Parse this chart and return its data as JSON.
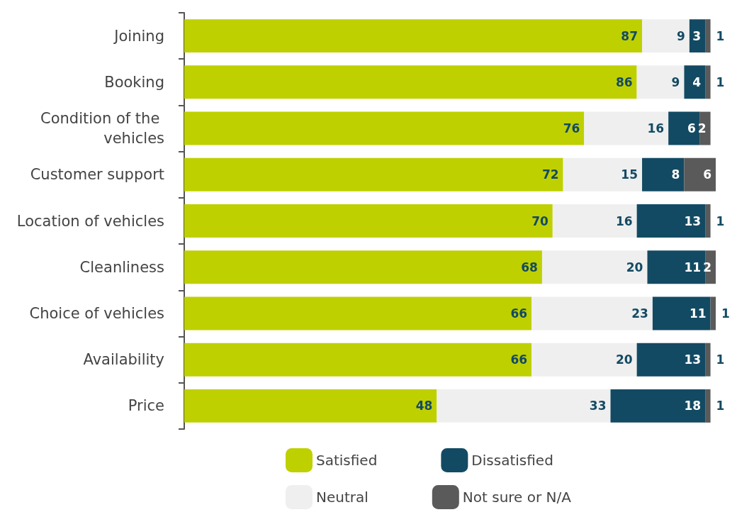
{
  "chart_data": {
    "type": "bar",
    "orientation": "horizontal",
    "stacked": true,
    "data_labels": true,
    "legend": "bottom",
    "grid": false,
    "categories": [
      "Joining",
      "Booking",
      "Condition of the vehicles",
      "Customer support",
      "Location of vehicles",
      "Cleanliness",
      "Choice of vehicles",
      "Availability",
      "Price"
    ],
    "series": [
      {
        "name": "Satisfied",
        "color": "#bfd000",
        "values": [
          87,
          86,
          76,
          72,
          70,
          68,
          66,
          66,
          48
        ]
      },
      {
        "name": "Neutral",
        "color": "#efefef",
        "values": [
          9,
          9,
          16,
          15,
          16,
          20,
          23,
          20,
          33
        ]
      },
      {
        "name": "Dissatisfied",
        "color": "#134a63",
        "values": [
          3,
          4,
          6,
          8,
          13,
          11,
          11,
          13,
          18
        ]
      },
      {
        "name": "Not sure or N/A",
        "color": "#5a5a5a",
        "values": [
          1,
          1,
          2,
          6,
          1,
          2,
          1,
          1,
          1
        ]
      }
    ]
  }
}
